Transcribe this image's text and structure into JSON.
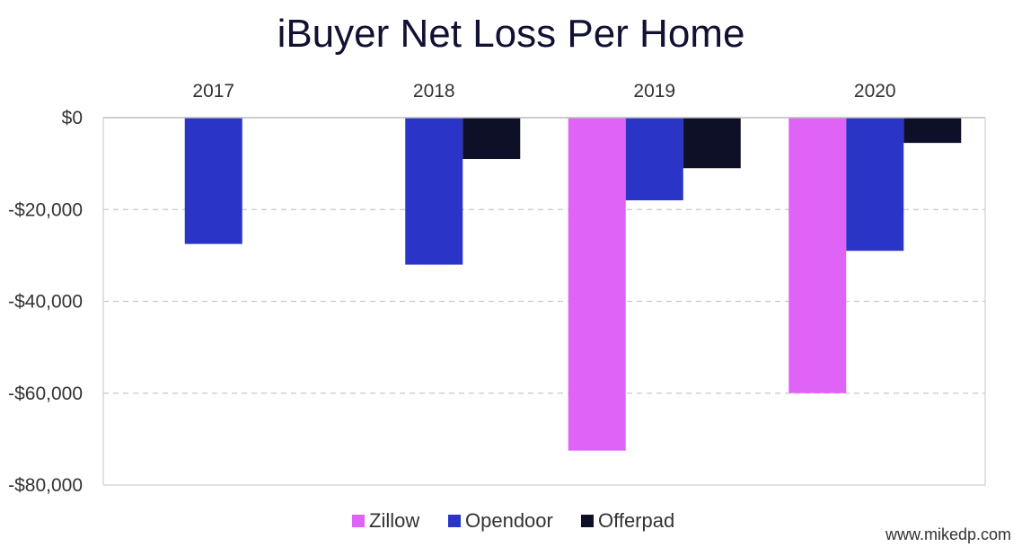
{
  "chart_data": {
    "type": "bar",
    "title": "iBuyer Net Loss Per Home",
    "categories": [
      "2017",
      "2018",
      "2019",
      "2020"
    ],
    "series": [
      {
        "name": "Zillow",
        "color": "#e063f7",
        "values": [
          null,
          null,
          -72500,
          -60000
        ]
      },
      {
        "name": "Opendoor",
        "color": "#2a35c8",
        "values": [
          -27500,
          -32000,
          -18000,
          -29000
        ]
      },
      {
        "name": "Offerpad",
        "color": "#0e1028",
        "values": [
          null,
          -9000,
          -11000,
          -5500
        ]
      }
    ],
    "ylim": [
      -80000,
      0
    ],
    "yticks": [
      0,
      -20000,
      -40000,
      -60000,
      -80000
    ],
    "ytick_labels": [
      "$0",
      "-$20,000",
      "-$40,000",
      "-$60,000",
      "-$80,000"
    ],
    "xlabel": "",
    "ylabel": "",
    "grid": true,
    "legend_position": "bottom",
    "category_labels_position": "top"
  },
  "watermark": "www.mikedp.com"
}
